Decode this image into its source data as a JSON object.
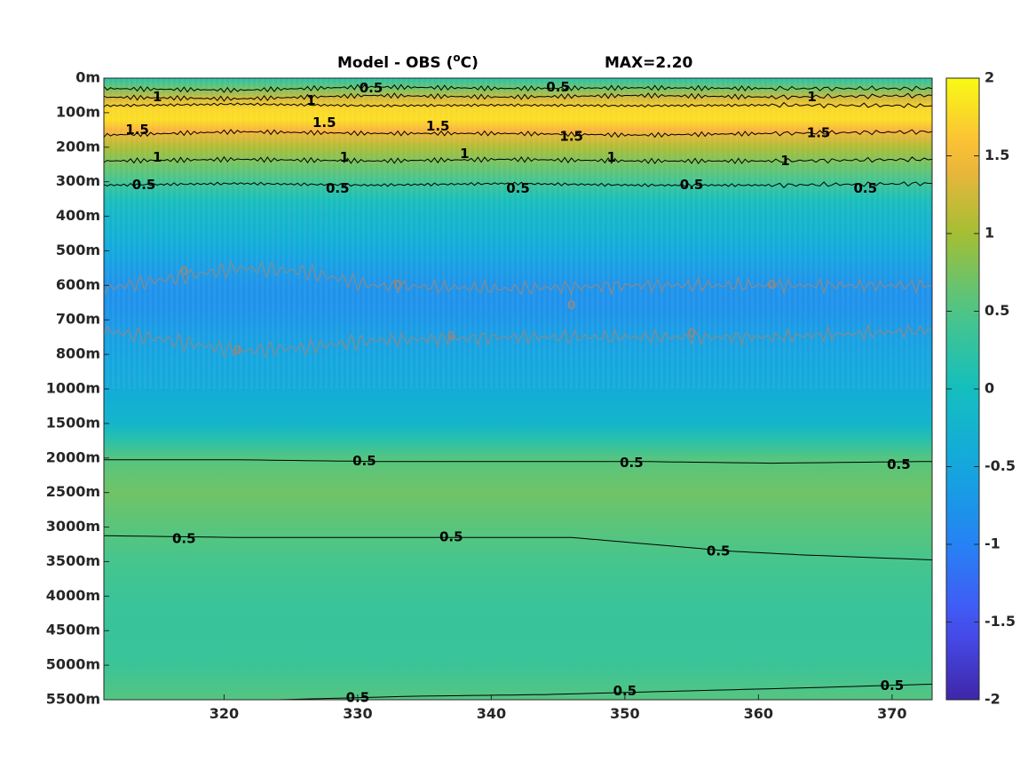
{
  "chart_data": {
    "type": "heatmap",
    "title": "Model - OBS (°C)",
    "title_parts": {
      "main": "Model - OBS (",
      "superscript": "o",
      "unit": "C)"
    },
    "annotation": "MAX=2.20",
    "xlim": [
      311,
      373
    ],
    "x_ticks": [
      320,
      330,
      340,
      350,
      360,
      370
    ],
    "y_tick_labels": [
      "0m",
      "100m",
      "200m",
      "300m",
      "400m",
      "500m",
      "600m",
      "700m",
      "800m",
      "1000m",
      "1500m",
      "2000m",
      "2500m",
      "3000m",
      "3500m",
      "4000m",
      "4500m",
      "5000m",
      "5500m"
    ],
    "colorbar": {
      "limits": [
        -2,
        2
      ],
      "ticks": [
        2,
        1.5,
        1,
        0.5,
        0,
        -0.5,
        -1,
        -1.5,
        -2
      ],
      "tick_labels": [
        "2",
        "1.5",
        "1",
        "0.5",
        "0",
        "-0.5",
        "-1",
        "-1.5",
        "-2"
      ],
      "colormap": "parula"
    },
    "depth_profile": [
      {
        "level": 0.0,
        "value": 0.15
      },
      {
        "level": 0.3,
        "value": 0.7
      },
      {
        "level": 0.6,
        "value": 1.3
      },
      {
        "level": 0.9,
        "value": 1.75
      },
      {
        "level": 1.2,
        "value": 1.8
      },
      {
        "level": 1.5,
        "value": 1.5
      },
      {
        "level": 2.0,
        "value": 1.05
      },
      {
        "level": 2.5,
        "value": 0.7
      },
      {
        "level": 3.0,
        "value": 0.4
      },
      {
        "level": 3.5,
        "value": 0.05
      },
      {
        "level": 4.0,
        "value": -0.2
      },
      {
        "level": 4.5,
        "value": -0.3
      },
      {
        "level": 5.0,
        "value": -0.5
      },
      {
        "level": 5.5,
        "value": -0.65
      },
      {
        "level": 6.0,
        "value": -0.78
      },
      {
        "level": 6.5,
        "value": -0.8
      },
      {
        "level": 7.0,
        "value": -0.72
      },
      {
        "level": 7.5,
        "value": -0.62
      },
      {
        "level": 8.0,
        "value": -0.55
      },
      {
        "level": 9.0,
        "value": -0.4
      },
      {
        "level": 10.0,
        "value": -0.2
      },
      {
        "level": 10.5,
        "value": 0.2
      },
      {
        "level": 11.0,
        "value": 0.55
      },
      {
        "level": 12.0,
        "value": 0.7
      },
      {
        "level": 13.0,
        "value": 0.58
      },
      {
        "level": 14.0,
        "value": 0.45
      },
      {
        "level": 15.0,
        "value": 0.35
      },
      {
        "level": 16.0,
        "value": 0.32
      },
      {
        "level": 17.0,
        "value": 0.35
      },
      {
        "level": 18.0,
        "value": 0.55
      }
    ],
    "contour_lines": [
      {
        "level": "0.5",
        "color": "black",
        "wavy": true,
        "points": [
          [
            311,
            0.3
          ],
          [
            321,
            0.35
          ],
          [
            331,
            0.25
          ],
          [
            341,
            0.3
          ],
          [
            351,
            0.28
          ],
          [
            361,
            0.3
          ],
          [
            373,
            0.3
          ]
        ]
      },
      {
        "level": "1",
        "color": "black",
        "wavy": true,
        "points": [
          [
            311,
            0.55
          ],
          [
            321,
            0.6
          ],
          [
            331,
            0.5
          ],
          [
            341,
            0.55
          ],
          [
            351,
            0.5
          ],
          [
            361,
            0.55
          ],
          [
            373,
            0.5
          ]
        ]
      },
      {
        "level": "1.5",
        "color": "black",
        "wavy": true,
        "points": [
          [
            311,
            0.8
          ],
          [
            321,
            0.75
          ],
          [
            331,
            0.8
          ],
          [
            341,
            0.78
          ],
          [
            351,
            0.8
          ],
          [
            361,
            0.78
          ],
          [
            373,
            0.8
          ]
        ]
      },
      {
        "level": "1.5",
        "color": "black",
        "wavy": true,
        "points": [
          [
            311,
            1.65
          ],
          [
            321,
            1.55
          ],
          [
            331,
            1.6
          ],
          [
            341,
            1.6
          ],
          [
            351,
            1.65
          ],
          [
            361,
            1.6
          ],
          [
            373,
            1.55
          ]
        ]
      },
      {
        "level": "1",
        "color": "black",
        "wavy": true,
        "points": [
          [
            311,
            2.4
          ],
          [
            321,
            2.35
          ],
          [
            331,
            2.4
          ],
          [
            341,
            2.35
          ],
          [
            351,
            2.4
          ],
          [
            361,
            2.4
          ],
          [
            373,
            2.35
          ]
        ]
      },
      {
        "level": "0.5",
        "color": "black",
        "wavy": true,
        "points": [
          [
            311,
            3.1
          ],
          [
            321,
            3.05
          ],
          [
            331,
            3.1
          ],
          [
            341,
            3.05
          ],
          [
            351,
            3.1
          ],
          [
            361,
            3.1
          ],
          [
            373,
            3.05
          ]
        ]
      },
      {
        "level": "0",
        "color": "gray",
        "wavy": true,
        "points": [
          [
            311,
            6.1
          ],
          [
            316,
            5.8
          ],
          [
            321,
            5.5
          ],
          [
            326,
            5.6
          ],
          [
            331,
            6.0
          ],
          [
            341,
            6.1
          ],
          [
            351,
            6.0
          ],
          [
            361,
            6.0
          ],
          [
            373,
            6.0
          ]
        ]
      },
      {
        "level": "0",
        "color": "gray",
        "wavy": true,
        "points": [
          [
            311,
            7.3
          ],
          [
            316,
            7.6
          ],
          [
            321,
            7.9
          ],
          [
            326,
            7.8
          ],
          [
            331,
            7.6
          ],
          [
            341,
            7.5
          ],
          [
            351,
            7.5
          ],
          [
            361,
            7.5
          ],
          [
            373,
            7.3
          ]
        ]
      },
      {
        "level": "0.5",
        "color": "black",
        "wavy": false,
        "points": [
          [
            311,
            11.05
          ],
          [
            321,
            11.05
          ],
          [
            331,
            11.1
          ],
          [
            341,
            11.1
          ],
          [
            351,
            11.1
          ],
          [
            361,
            11.15
          ],
          [
            373,
            11.1
          ]
        ]
      },
      {
        "level": "0.5",
        "color": "black",
        "wavy": false,
        "points": [
          [
            311,
            13.25
          ],
          [
            321,
            13.3
          ],
          [
            331,
            13.3
          ],
          [
            341,
            13.3
          ],
          [
            346,
            13.3
          ],
          [
            352,
            13.5
          ],
          [
            358,
            13.7
          ],
          [
            363,
            13.8
          ],
          [
            373,
            13.95
          ]
        ]
      },
      {
        "level": "0.5",
        "color": "black",
        "wavy": false,
        "points": [
          [
            324,
            18.0
          ],
          [
            334,
            17.9
          ],
          [
            344,
            17.85
          ],
          [
            354,
            17.75
          ],
          [
            364,
            17.65
          ],
          [
            373,
            17.55
          ]
        ]
      }
    ],
    "contour_labels": [
      {
        "text": "0.5",
        "x": 331,
        "y": 0.3,
        "color": "black"
      },
      {
        "text": "0.5",
        "x": 345,
        "y": 0.27,
        "color": "black"
      },
      {
        "text": "1",
        "x": 315,
        "y": 0.55,
        "color": "black"
      },
      {
        "text": "1",
        "x": 326.5,
        "y": 0.65,
        "color": "black"
      },
      {
        "text": "1",
        "x": 364,
        "y": 0.55,
        "color": "black"
      },
      {
        "text": "1.5",
        "x": 313.5,
        "y": 1.5,
        "color": "black"
      },
      {
        "text": "1.5",
        "x": 327.5,
        "y": 1.3,
        "color": "black"
      },
      {
        "text": "1.5",
        "x": 336,
        "y": 1.4,
        "color": "black"
      },
      {
        "text": "1.5",
        "x": 346,
        "y": 1.7,
        "color": "black"
      },
      {
        "text": "1.5",
        "x": 364.5,
        "y": 1.6,
        "color": "black"
      },
      {
        "text": "1",
        "x": 315,
        "y": 2.3,
        "color": "black"
      },
      {
        "text": "1",
        "x": 329,
        "y": 2.3,
        "color": "black"
      },
      {
        "text": "1",
        "x": 338,
        "y": 2.2,
        "color": "black"
      },
      {
        "text": "1",
        "x": 349,
        "y": 2.3,
        "color": "black"
      },
      {
        "text": "1",
        "x": 362,
        "y": 2.4,
        "color": "black"
      },
      {
        "text": "0.5",
        "x": 314,
        "y": 3.1,
        "color": "black"
      },
      {
        "text": "0.5",
        "x": 328.5,
        "y": 3.2,
        "color": "black"
      },
      {
        "text": "0.5",
        "x": 342,
        "y": 3.2,
        "color": "black"
      },
      {
        "text": "0.5",
        "x": 355,
        "y": 3.1,
        "color": "black"
      },
      {
        "text": "0.5",
        "x": 368,
        "y": 3.2,
        "color": "black"
      },
      {
        "text": "0",
        "x": 317,
        "y": 5.6,
        "color": "gray"
      },
      {
        "text": "0",
        "x": 333,
        "y": 6.0,
        "color": "gray"
      },
      {
        "text": "0",
        "x": 346,
        "y": 6.6,
        "color": "gray"
      },
      {
        "text": "0",
        "x": 361,
        "y": 6.0,
        "color": "gray"
      },
      {
        "text": "0",
        "x": 321,
        "y": 7.9,
        "color": "gray"
      },
      {
        "text": "0",
        "x": 337,
        "y": 7.5,
        "color": "gray"
      },
      {
        "text": "0",
        "x": 355,
        "y": 7.4,
        "color": "gray"
      },
      {
        "text": "0.5",
        "x": 330.5,
        "y": 11.1,
        "color": "black"
      },
      {
        "text": "0.5",
        "x": 350.5,
        "y": 11.15,
        "color": "black"
      },
      {
        "text": "0.5",
        "x": 370.5,
        "y": 11.2,
        "color": "black"
      },
      {
        "text": "0.5",
        "x": 317,
        "y": 13.35,
        "color": "black"
      },
      {
        "text": "0.5",
        "x": 337,
        "y": 13.3,
        "color": "black"
      },
      {
        "text": "0.5",
        "x": 357,
        "y": 13.7,
        "color": "black"
      },
      {
        "text": "0.5",
        "x": 330,
        "y": 17.95,
        "color": "black"
      },
      {
        "text": "0.5",
        "x": 350,
        "y": 17.75,
        "color": "black"
      },
      {
        "text": "0.5",
        "x": 370,
        "y": 17.6,
        "color": "black"
      }
    ]
  }
}
